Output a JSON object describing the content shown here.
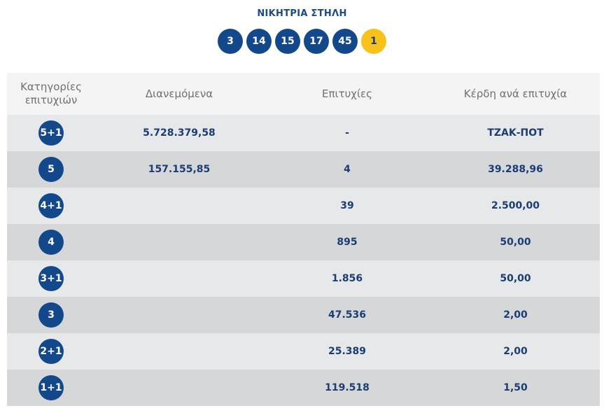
{
  "winning_title": "ΝΙΚΗΤΡΙΑ ΣΤΗΛΗ",
  "numbers": [
    "3",
    "14",
    "15",
    "17",
    "45"
  ],
  "joker": "1",
  "colors": {
    "ball": "#13498b",
    "joker": "#f7c21b",
    "text": "#1b3d73"
  },
  "table": {
    "headers": {
      "category": "Κατηγορίες επιτυχιών",
      "distributed": "Διανεμόμενα",
      "winners": "Επιτυχίες",
      "prize": "Κέρδη ανά επιτυχία"
    },
    "rows": [
      {
        "category": "5+1",
        "distributed": "5.728.379,58",
        "winners": "-",
        "prize": "ΤΖΑΚ-ΠΟΤ"
      },
      {
        "category": "5",
        "distributed": "157.155,85",
        "winners": "4",
        "prize": "39.288,96"
      },
      {
        "category": "4+1",
        "distributed": "",
        "winners": "39",
        "prize": "2.500,00"
      },
      {
        "category": "4",
        "distributed": "",
        "winners": "895",
        "prize": "50,00"
      },
      {
        "category": "3+1",
        "distributed": "",
        "winners": "1.856",
        "prize": "50,00"
      },
      {
        "category": "3",
        "distributed": "",
        "winners": "47.536",
        "prize": "2,00"
      },
      {
        "category": "2+1",
        "distributed": "",
        "winners": "25.389",
        "prize": "2,00"
      },
      {
        "category": "1+1",
        "distributed": "",
        "winners": "119.518",
        "prize": "1,50"
      }
    ]
  }
}
